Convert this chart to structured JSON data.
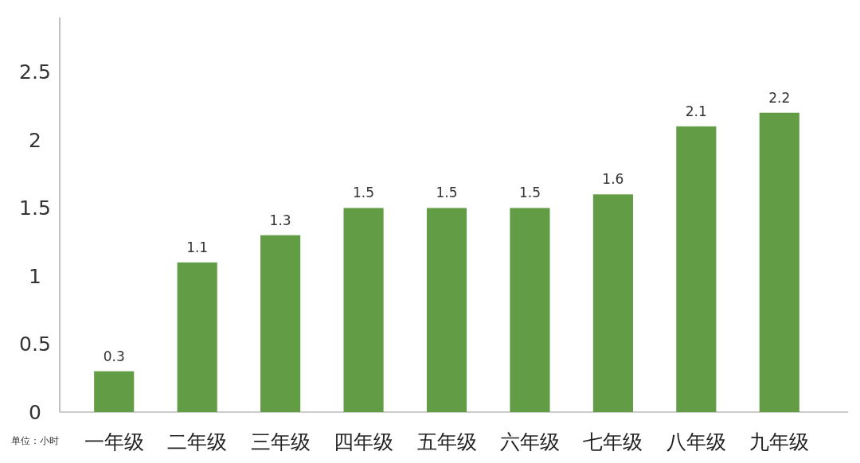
{
  "chart_data": {
    "type": "bar",
    "categories": [
      "一年级",
      "二年级",
      "三年级",
      "四年级",
      "五年级",
      "六年级",
      "七年级",
      "八年级",
      "九年级"
    ],
    "values": [
      0.3,
      1.1,
      1.3,
      1.5,
      1.5,
      1.5,
      1.6,
      2.1,
      2.2
    ],
    "color": "#629c44",
    "ylim": [
      0,
      2.9
    ],
    "yticks": [
      0,
      0.5,
      1,
      1.5,
      2,
      2.5
    ],
    "data_labels": true,
    "annotations": [
      "单位：小时"
    ]
  }
}
